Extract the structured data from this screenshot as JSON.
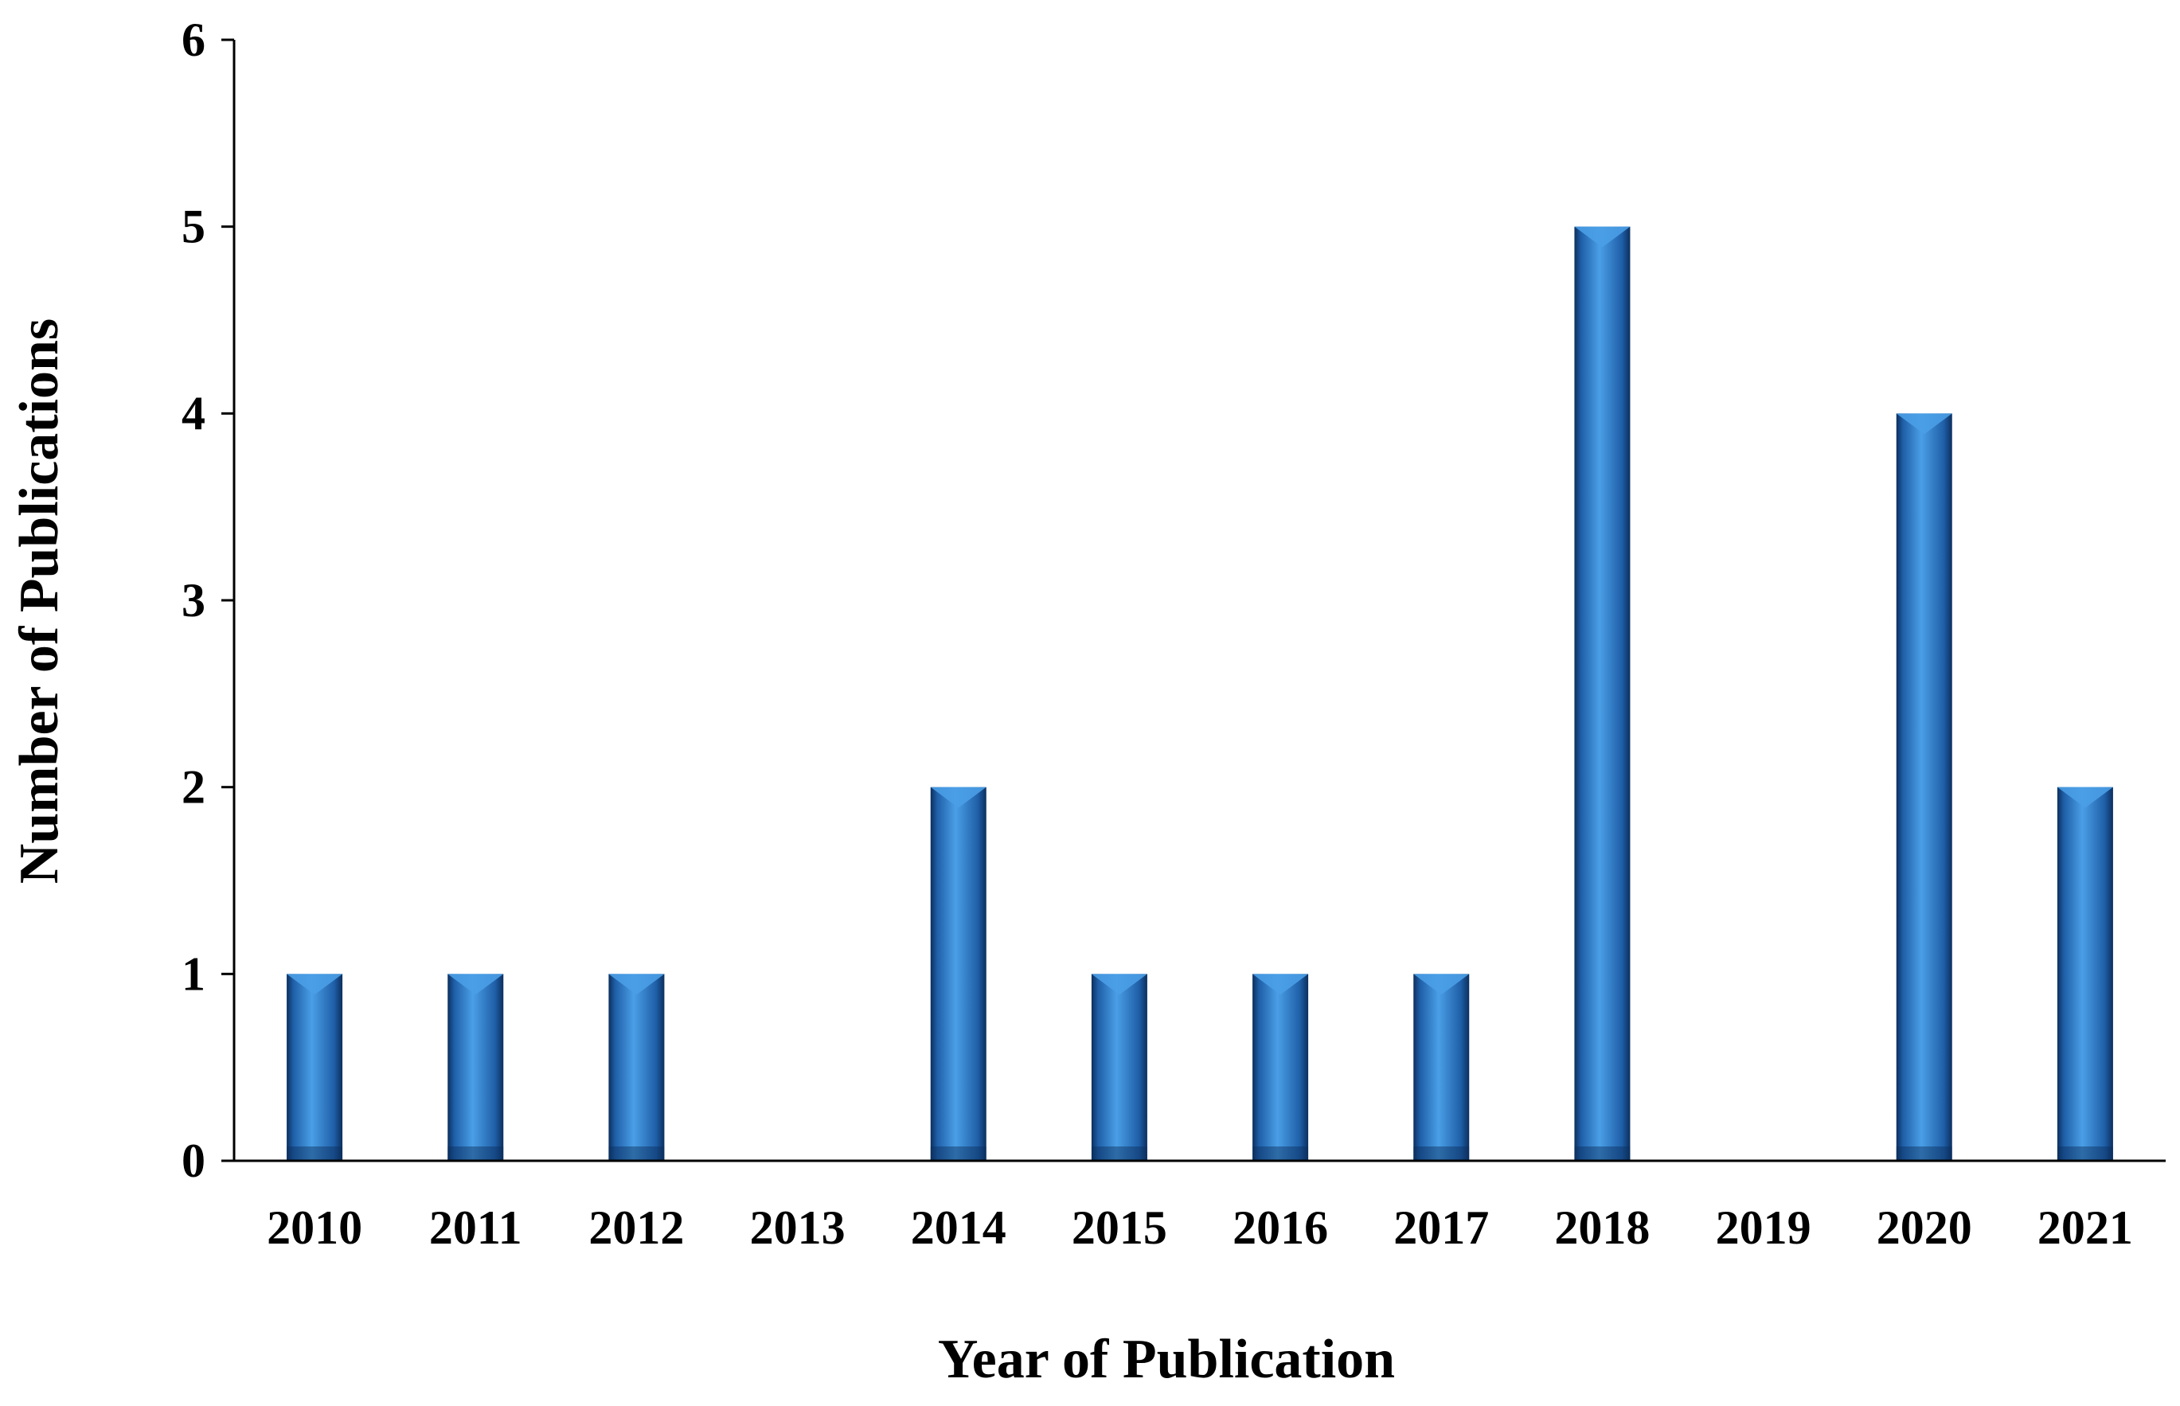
{
  "chart_data": {
    "type": "bar",
    "categories": [
      "2010",
      "2011",
      "2012",
      "2013",
      "2014",
      "2015",
      "2016",
      "2017",
      "2018",
      "2019",
      "2020",
      "2021"
    ],
    "values": [
      1,
      1,
      1,
      0,
      2,
      1,
      1,
      1,
      5,
      0,
      4,
      2
    ],
    "title": "",
    "xlabel": "Year of Publication",
    "ylabel": "Number of Publications",
    "ylim": [
      0,
      6
    ],
    "yticks": [
      0,
      1,
      2,
      3,
      4,
      5,
      6
    ],
    "grid": false,
    "legend": "none",
    "bar_color": "#1f5fa8",
    "bar_highlight": "#4a9fe6",
    "bar_shadow": "#0c2f5e",
    "axis_color": "#000000"
  }
}
